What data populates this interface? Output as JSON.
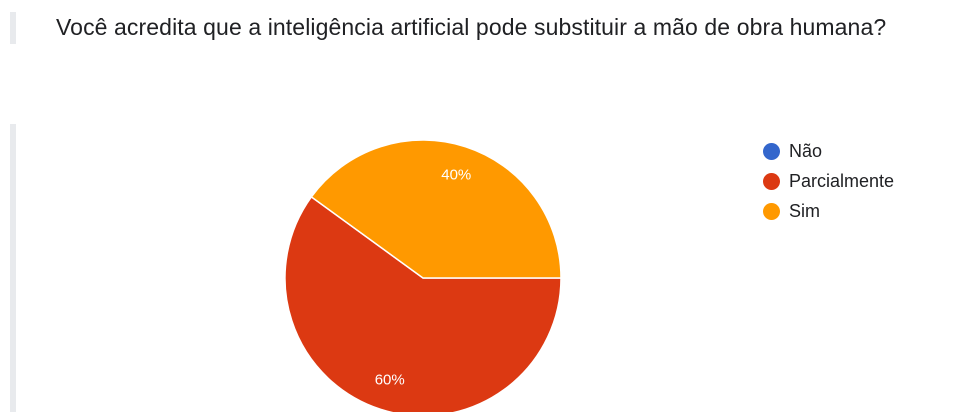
{
  "question": {
    "text": "Você acredita que a inteligência artificial pode substituir a mão de obra humana?"
  },
  "chart_data": {
    "type": "pie",
    "title": "",
    "categories": [
      "Não",
      "Parcialmente",
      "Sim"
    ],
    "values": [
      0,
      60,
      40
    ],
    "labels": [
      "0%",
      "60%",
      "40%"
    ],
    "colors": [
      "#3366cc",
      "#dc3912",
      "#ff9900"
    ],
    "legend_position": "right"
  }
}
